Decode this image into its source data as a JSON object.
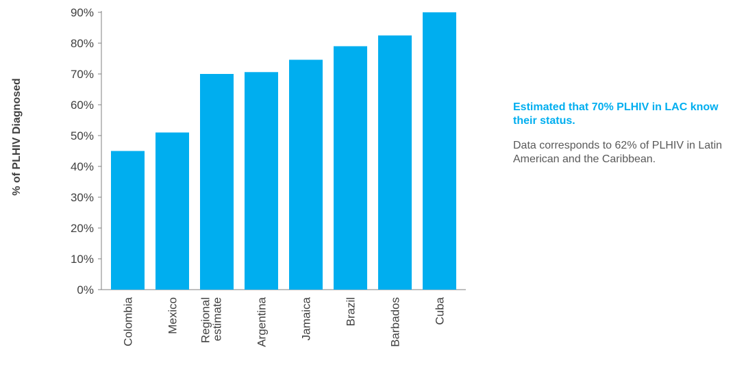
{
  "chart_data": {
    "type": "bar",
    "categories": [
      [
        "Colombia"
      ],
      [
        "Mexico"
      ],
      [
        "Regional",
        "estimate"
      ],
      [
        "Argentina"
      ],
      [
        "Jamaica"
      ],
      [
        "Brazil"
      ],
      [
        "Barbados"
      ],
      [
        "Cuba"
      ]
    ],
    "values": [
      45,
      51,
      70,
      70.6,
      74.6,
      79,
      82.5,
      90
    ],
    "ylabel": "% of PLHIV Diagnosed",
    "ylim": [
      0,
      90
    ],
    "yticks": [
      "0%",
      "10%",
      "20%",
      "30%",
      "40%",
      "50%",
      "60%",
      "70%",
      "80%",
      "90%"
    ],
    "bar_color": "#00aeef",
    "axis_color": "#7f7f7f",
    "grid": false,
    "legend": "none"
  },
  "annotation": {
    "title": "Estimated that 70% PLHIV in LAC know their status.",
    "body": "Data corresponds to 62% of PLHIV in Latin American and  the Caribbean."
  }
}
